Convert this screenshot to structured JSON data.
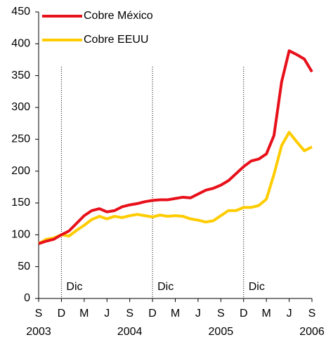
{
  "chart_data": {
    "type": "line",
    "categories": [
      "S",
      null,
      null,
      "D",
      null,
      null,
      "M",
      null,
      null,
      "J",
      null,
      null,
      "S",
      null,
      null,
      "D",
      null,
      null,
      "M",
      null,
      null,
      "J",
      null,
      null,
      "S",
      null,
      null,
      "D",
      null,
      null,
      "M",
      null,
      null,
      "J",
      null,
      null,
      "S"
    ],
    "category_years": [
      "2003",
      null,
      null,
      null,
      null,
      null,
      null,
      null,
      null,
      null,
      null,
      null,
      "2004",
      null,
      null,
      null,
      null,
      null,
      null,
      null,
      null,
      null,
      null,
      null,
      "2005",
      null,
      null,
      null,
      null,
      null,
      null,
      null,
      null,
      null,
      null,
      null,
      "2006"
    ],
    "series": [
      {
        "name": "Cobre México",
        "color": "#e8101a",
        "values": [
          86,
          90,
          93,
          100,
          106,
          118,
          130,
          138,
          141,
          136,
          138,
          144,
          147,
          149,
          152,
          154,
          155,
          155,
          157,
          159,
          158,
          164,
          170,
          173,
          178,
          185,
          196,
          207,
          216,
          219,
          227,
          256,
          340,
          389,
          383,
          376,
          356
        ]
      },
      {
        "name": "Cobre EEUU",
        "color": "#ffcc00",
        "values": [
          86,
          93,
          95,
          100,
          98,
          107,
          115,
          124,
          129,
          125,
          129,
          127,
          130,
          132,
          130,
          128,
          131,
          129,
          130,
          129,
          125,
          123,
          120,
          122,
          130,
          138,
          138,
          143,
          143,
          146,
          156,
          195,
          240,
          261,
          246,
          232,
          238
        ]
      }
    ],
    "vlines": [
      {
        "index": 3,
        "label": "Dic"
      },
      {
        "index": 15,
        "label": "Dic"
      },
      {
        "index": 27,
        "label": "Dic"
      }
    ],
    "ylim": [
      0,
      450
    ],
    "yticks": [
      0,
      50,
      100,
      150,
      200,
      250,
      300,
      350,
      400,
      450
    ],
    "legend": "upper left",
    "grid": false
  }
}
